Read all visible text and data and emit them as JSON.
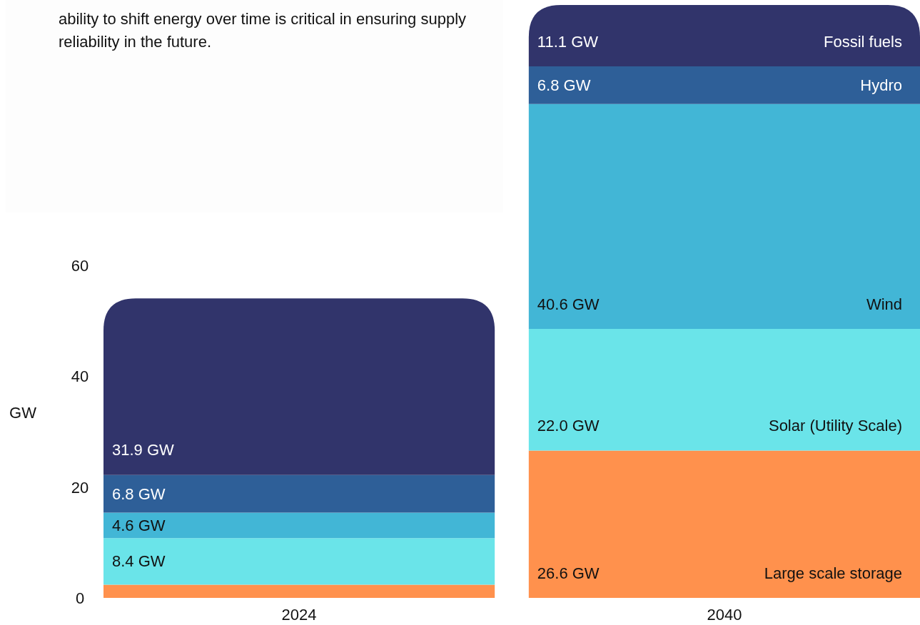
{
  "chart_data": {
    "type": "bar",
    "stacked": true,
    "annotations": [
      "ability to shift energy over time is critical in ensuring supply reliability in the future."
    ],
    "ylabel": "GW",
    "categories": [
      "2024",
      "2040"
    ],
    "ylim": [
      0,
      108
    ],
    "yticks": [
      0,
      20,
      40,
      60
    ],
    "grid": false,
    "series": [
      {
        "name": "Large scale storage",
        "color": "#ff914d",
        "values": [
          2.4,
          26.6
        ],
        "value_labels": [
          null,
          "26.6 GW"
        ]
      },
      {
        "name": "Solar (Utility Scale)",
        "color": "#6ae4e9",
        "values": [
          8.4,
          22.0
        ],
        "value_labels": [
          "8.4 GW",
          "22.0 GW"
        ]
      },
      {
        "name": "Wind",
        "color": "#42b6d6",
        "values": [
          4.6,
          40.6
        ],
        "value_labels": [
          "4.6 GW",
          "40.6 GW"
        ]
      },
      {
        "name": "Hydro",
        "color": "#2e5f98",
        "values": [
          6.8,
          6.8
        ],
        "value_labels": [
          "6.8 GW",
          "6.8 GW"
        ]
      },
      {
        "name": "Fossil fuels",
        "color": "#31346b",
        "values": [
          31.9,
          11.1
        ],
        "value_labels": [
          "31.9  GW",
          "11.1 GW"
        ]
      }
    ]
  }
}
